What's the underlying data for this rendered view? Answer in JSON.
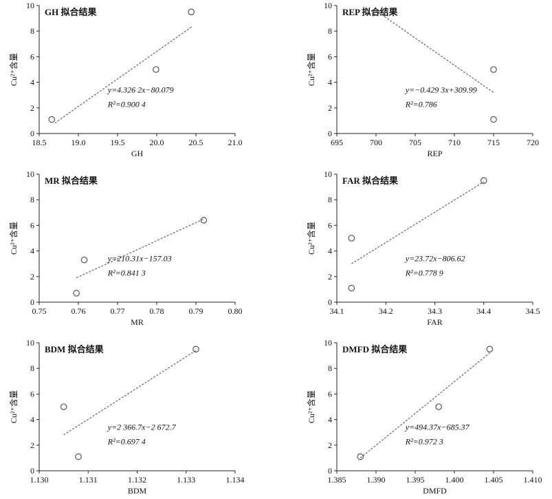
{
  "chart_data": [
    {
      "type": "scatter",
      "title": "GH 拟合结果",
      "xlabel": "GH",
      "ylabel": "Cu²⁺含量",
      "xlim": [
        18.5,
        21.0
      ],
      "ylim": [
        0,
        10
      ],
      "xticks": [
        "18.5",
        "19.0",
        "19.5",
        "20.0",
        "20.5",
        "21.0"
      ],
      "yticks": [
        "0",
        "2",
        "4",
        "6",
        "8",
        "10"
      ],
      "points": [
        {
          "x": 18.66,
          "y": 1.1
        },
        {
          "x": 19.99,
          "y": 5.0
        },
        {
          "x": 20.44,
          "y": 9.5
        }
      ],
      "fit_line": [
        {
          "x": 18.7,
          "y": 0.82
        },
        {
          "x": 20.45,
          "y": 8.35
        }
      ],
      "equation": "y=4.326 2x−80.079",
      "r2": "R²=0.900 4"
    },
    {
      "type": "scatter",
      "title": "REP 拟合结果",
      "xlabel": "REP",
      "ylabel": "Cu²⁺含量",
      "xlim": [
        695,
        720
      ],
      "ylim": [
        0,
        10
      ],
      "xticks": [
        "695",
        "700",
        "705",
        "710",
        "715",
        "720"
      ],
      "yticks": [
        "0",
        "2",
        "4",
        "6",
        "8",
        "10"
      ],
      "points": [
        {
          "x": 700,
          "y": 9.5
        },
        {
          "x": 715,
          "y": 5.0
        },
        {
          "x": 715,
          "y": 1.1
        }
      ],
      "fit_line": [
        {
          "x": 700,
          "y": 9.6
        },
        {
          "x": 715,
          "y": 3.2
        }
      ],
      "equation": "y=−0.429 3x+309.99",
      "r2": "R²=0.786"
    },
    {
      "type": "scatter",
      "title": "MR 拟合结果",
      "xlabel": "MR",
      "ylabel": "Cu²⁺含量",
      "xlim": [
        0.75,
        0.8
      ],
      "ylim": [
        0,
        10
      ],
      "xticks": [
        "0.75",
        "0.76",
        "0.77",
        "0.78",
        "0.79",
        "0.80"
      ],
      "yticks": [
        "0",
        "2",
        "4",
        "6",
        "8",
        "10"
      ],
      "points": [
        {
          "x": 0.7595,
          "y": 0.7
        },
        {
          "x": 0.7615,
          "y": 3.3
        },
        {
          "x": 0.792,
          "y": 6.4
        }
      ],
      "fit_line": [
        {
          "x": 0.7595,
          "y": 1.9
        },
        {
          "x": 0.792,
          "y": 6.5
        }
      ],
      "equation": "y=210.31x−157.03",
      "r2": "R²=0.841 3"
    },
    {
      "type": "scatter",
      "title": "FAR 拟合结果",
      "xlabel": "FAR",
      "ylabel": "Cu²⁺含量",
      "xlim": [
        34.1,
        34.5
      ],
      "ylim": [
        0,
        10
      ],
      "xticks": [
        "34.1",
        "34.2",
        "34.3",
        "34.4",
        "34.5"
      ],
      "yticks": [
        "0",
        "2",
        "4",
        "6",
        "8",
        "10"
      ],
      "points": [
        {
          "x": 34.13,
          "y": 5.0
        },
        {
          "x": 34.13,
          "y": 1.1
        },
        {
          "x": 34.4,
          "y": 9.5
        }
      ],
      "fit_line": [
        {
          "x": 34.13,
          "y": 3.0
        },
        {
          "x": 34.4,
          "y": 9.4
        }
      ],
      "equation": "y=23.72x−806.62",
      "r2": "R²=0.778 9"
    },
    {
      "type": "scatter",
      "title": "BDM 拟合结果",
      "xlabel": "BDM",
      "ylabel": "Cu²⁺含量",
      "xlim": [
        1.13,
        1.134
      ],
      "ylim": [
        0,
        10
      ],
      "xticks": [
        "1.130",
        "1.131",
        "1.132",
        "1.133",
        "1.134"
      ],
      "yticks": [
        "0",
        "2",
        "4",
        "6",
        "8",
        "10"
      ],
      "points": [
        {
          "x": 1.1305,
          "y": 5.0
        },
        {
          "x": 1.1308,
          "y": 1.1
        },
        {
          "x": 1.1332,
          "y": 9.5
        }
      ],
      "fit_line": [
        {
          "x": 1.1305,
          "y": 2.8
        },
        {
          "x": 1.1332,
          "y": 9.4
        }
      ],
      "equation": "y=2 366.7x−2 672.7",
      "r2": "R²=0.697 4"
    },
    {
      "type": "scatter",
      "title": "DMFD 拟合结果",
      "xlabel": "DMFD",
      "ylabel": "Cu²⁺含量",
      "xlim": [
        1.385,
        1.41
      ],
      "ylim": [
        0,
        10
      ],
      "xticks": [
        "1.385",
        "1.390",
        "1.395",
        "1.400",
        "1.405",
        "1.410"
      ],
      "yticks": [
        "0",
        "2",
        "4",
        "6",
        "8",
        "10"
      ],
      "points": [
        {
          "x": 1.388,
          "y": 1.1
        },
        {
          "x": 1.398,
          "y": 5.0
        },
        {
          "x": 1.4045,
          "y": 9.5
        }
      ],
      "fit_line": [
        {
          "x": 1.388,
          "y": 1.0
        },
        {
          "x": 1.4045,
          "y": 9.2
        }
      ],
      "equation": "y=494.37x−685.37",
      "r2": "R²=0.972 3"
    }
  ]
}
